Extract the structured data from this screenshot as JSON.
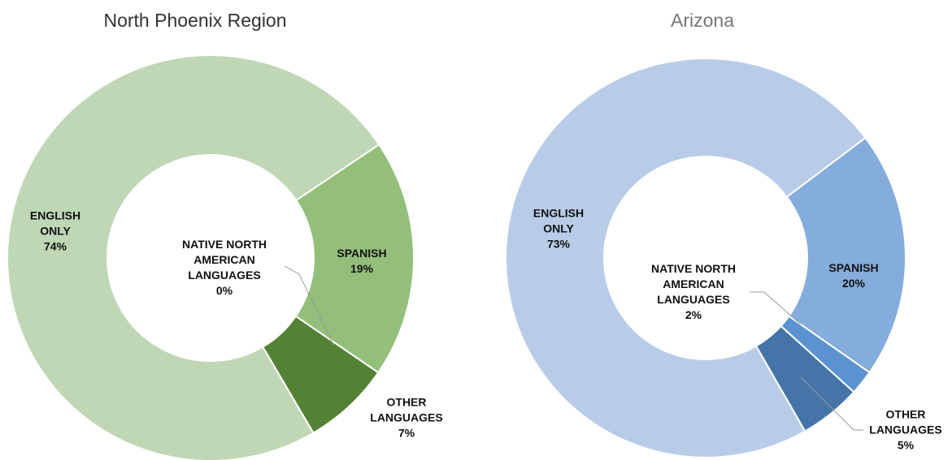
{
  "chart_data": [
    {
      "type": "donut",
      "title": "North Phoenix Region",
      "categories": [
        "ENGLISH ONLY",
        "SPANISH",
        "NATIVE NORTH AMERICAN LANGUAGES",
        "OTHER LANGUAGES"
      ],
      "values": [
        74,
        19,
        0,
        7
      ],
      "value_labels": [
        "74%",
        "19%",
        "0%",
        "7%"
      ],
      "colors": [
        "#bfd7b5",
        "#93bf7a",
        "#a9cf94",
        "#548235"
      ]
    },
    {
      "type": "donut",
      "title": "Arizona",
      "categories": [
        "ENGLISH ONLY",
        "SPANISH",
        "NATIVE NORTH AMERICAN LANGUAGES",
        "OTHER LANGUAGES"
      ],
      "values": [
        73,
        20,
        2,
        5
      ],
      "value_labels": [
        "73%",
        "20%",
        "2%",
        "5%"
      ],
      "colors": [
        "#b8cce8",
        "#84acdc",
        "#5b93d0",
        "#4574a8"
      ]
    }
  ]
}
